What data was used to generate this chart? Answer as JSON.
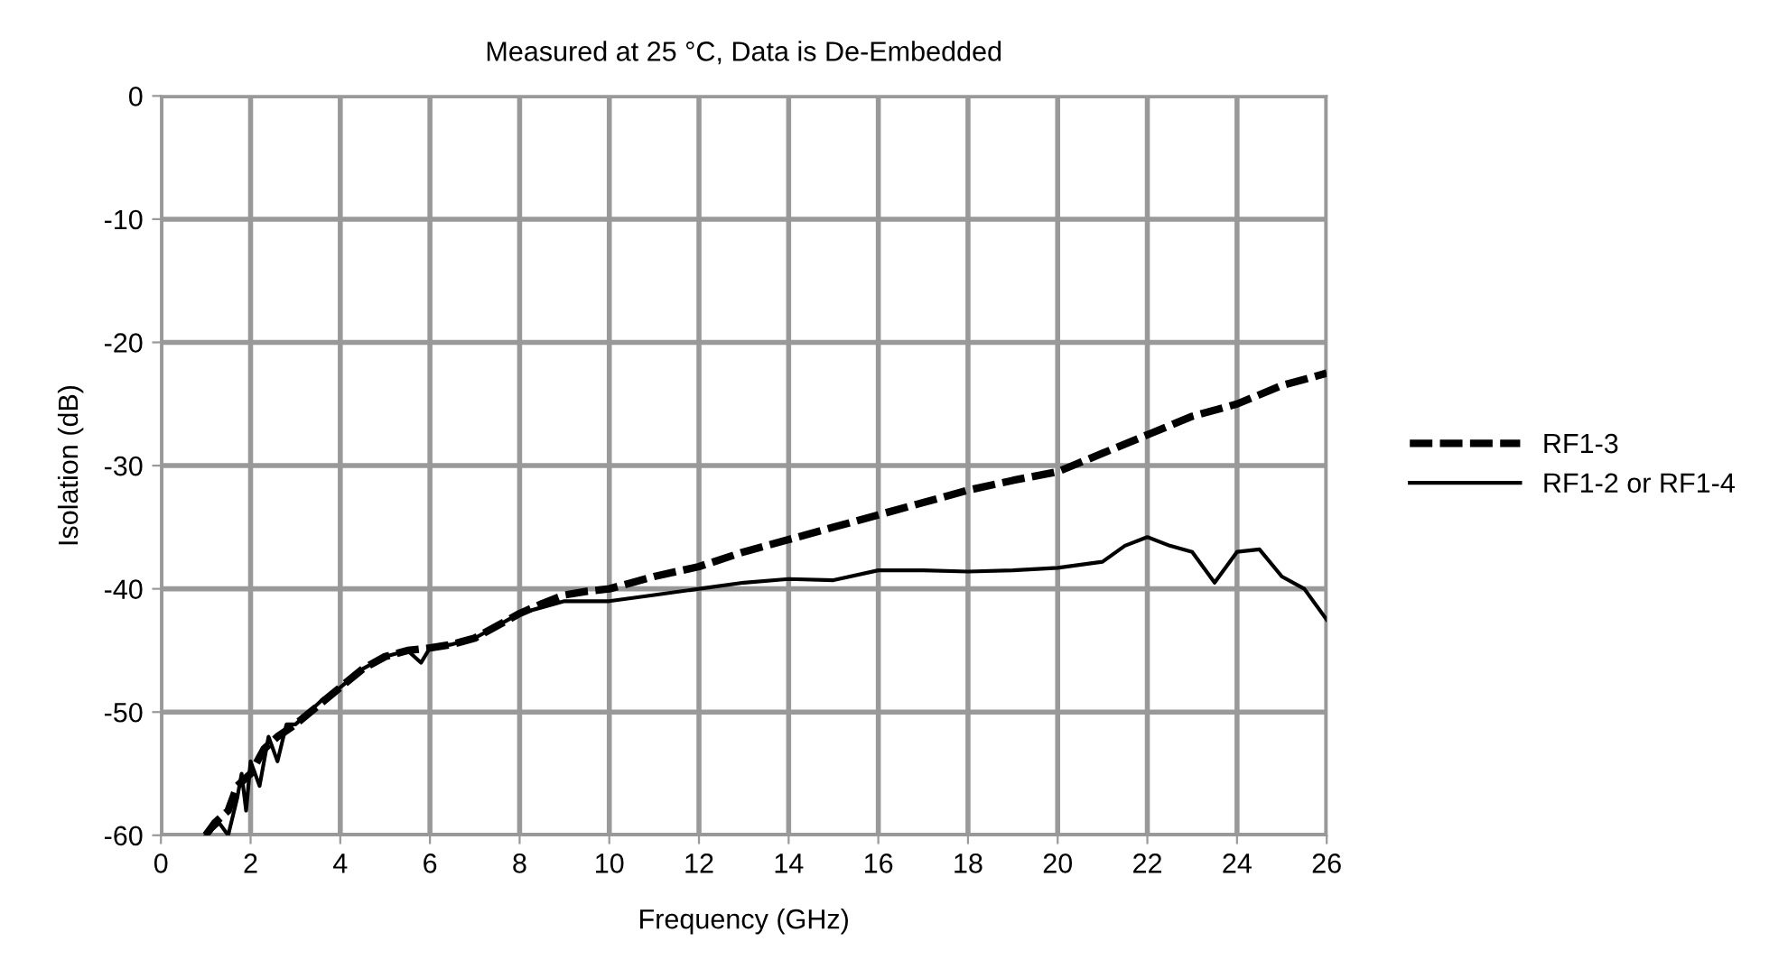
{
  "chart_data": {
    "type": "line",
    "title": "Measured at 25 °C, Data is De-Embedded",
    "xlabel": "Frequency (GHz)",
    "ylabel": "Isolation (dB)",
    "xlim": [
      0,
      26
    ],
    "xticks": [
      0,
      2,
      4,
      6,
      8,
      10,
      12,
      14,
      16,
      18,
      20,
      22,
      24,
      26
    ],
    "ylim": [
      -60,
      0
    ],
    "yticks": [
      -60,
      -50,
      -40,
      -30,
      -20,
      -10,
      0
    ],
    "grid": true,
    "legend": "right",
    "marker": "none",
    "series": [
      {
        "name": "RF1-3",
        "color": "#000000",
        "line_style": "dashed",
        "x": [
          1,
          1.2,
          1.5,
          1.7,
          2,
          2.3,
          2.6,
          3,
          3.5,
          4,
          4.5,
          5,
          5.5,
          6,
          6.5,
          7,
          7.5,
          8,
          8.5,
          9,
          9.5,
          10,
          11,
          12,
          13,
          14,
          15,
          16,
          17,
          18,
          19,
          20,
          21,
          22,
          23,
          24,
          25,
          26
        ],
        "values": [
          -60,
          -59,
          -58,
          -56,
          -55,
          -53,
          -52,
          -51,
          -49.5,
          -48,
          -46.5,
          -45.5,
          -45,
          -44.8,
          -44.5,
          -44,
          -43,
          -42,
          -41.2,
          -40.5,
          -40.2,
          -40,
          -39,
          -38.2,
          -37,
          -36,
          -35,
          -34,
          -33,
          -32,
          -31.2,
          -30.5,
          -29,
          -27.5,
          -26,
          -25,
          -23.5,
          -22.5
        ]
      },
      {
        "name": "RF1-2 or RF1-4",
        "color": "#000000",
        "line_style": "solid",
        "x": [
          1,
          1.3,
          1.5,
          1.7,
          1.8,
          1.9,
          2,
          2.2,
          2.4,
          2.6,
          2.8,
          3,
          3.3,
          3.6,
          4,
          4.5,
          5,
          5.5,
          5.8,
          6,
          6.5,
          7,
          7.5,
          8,
          8.5,
          9,
          10,
          11,
          12,
          13,
          14,
          15,
          16,
          17,
          18,
          19,
          20,
          21,
          21.5,
          22,
          22.5,
          23,
          23.5,
          24,
          24.5,
          25,
          25.5,
          26
        ],
        "values": [
          -60,
          -59,
          -60,
          -57,
          -55,
          -58,
          -54,
          -56,
          -52,
          -54,
          -51,
          -51,
          -50,
          -49,
          -48,
          -46.5,
          -45.5,
          -45,
          -46,
          -44.8,
          -44.5,
          -44,
          -43,
          -42,
          -41.5,
          -41,
          -41,
          -40.5,
          -40,
          -39.5,
          -39.2,
          -39.3,
          -38.5,
          -38.5,
          -38.6,
          -38.5,
          -38.3,
          -37.8,
          -36.5,
          -35.8,
          -36.5,
          -37,
          -39.5,
          -37,
          -36.8,
          -39,
          -40,
          -42.5
        ]
      }
    ]
  }
}
